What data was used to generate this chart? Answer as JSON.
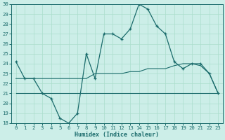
{
  "xlabel": "Humidex (Indice chaleur)",
  "bg_color": "#cceee8",
  "grid_color": "#aaddcc",
  "line_color": "#1a6b6b",
  "xlim": [
    -0.5,
    23.5
  ],
  "ylim": [
    18,
    30
  ],
  "xticks": [
    0,
    1,
    2,
    3,
    4,
    5,
    6,
    7,
    8,
    9,
    10,
    11,
    12,
    13,
    14,
    15,
    16,
    17,
    18,
    19,
    20,
    21,
    22,
    23
  ],
  "yticks": [
    18,
    19,
    20,
    21,
    22,
    23,
    24,
    25,
    26,
    27,
    28,
    29,
    30
  ],
  "line1_x": [
    0,
    1,
    2,
    3,
    4,
    5,
    6,
    7,
    8,
    9,
    10,
    11,
    12,
    13,
    14,
    15,
    16,
    17,
    18,
    19,
    20,
    21,
    22,
    23
  ],
  "line1_y": [
    24.2,
    22.5,
    22.5,
    21.0,
    20.5,
    18.5,
    18.0,
    19.0,
    25.0,
    22.5,
    27.0,
    27.0,
    26.5,
    27.5,
    30.0,
    29.5,
    27.8,
    27.0,
    24.2,
    23.5,
    24.0,
    24.0,
    23.0,
    21.0
  ],
  "line2_x": [
    0,
    3,
    7,
    10,
    14,
    22,
    23
  ],
  "line2_y": [
    21.0,
    21.0,
    21.0,
    21.0,
    21.0,
    21.0,
    21.0
  ],
  "line3_x": [
    0,
    1,
    2,
    3,
    4,
    5,
    6,
    7,
    8,
    9,
    10,
    11,
    12,
    13,
    14,
    15,
    16,
    17,
    18,
    19,
    20,
    21,
    22,
    23
  ],
  "line3_y": [
    22.5,
    22.5,
    22.5,
    22.5,
    22.5,
    22.5,
    22.5,
    22.5,
    22.5,
    23.0,
    23.0,
    23.0,
    23.0,
    23.2,
    23.2,
    23.5,
    23.5,
    23.5,
    23.8,
    24.0,
    24.0,
    23.8,
    23.0,
    21.0
  ]
}
